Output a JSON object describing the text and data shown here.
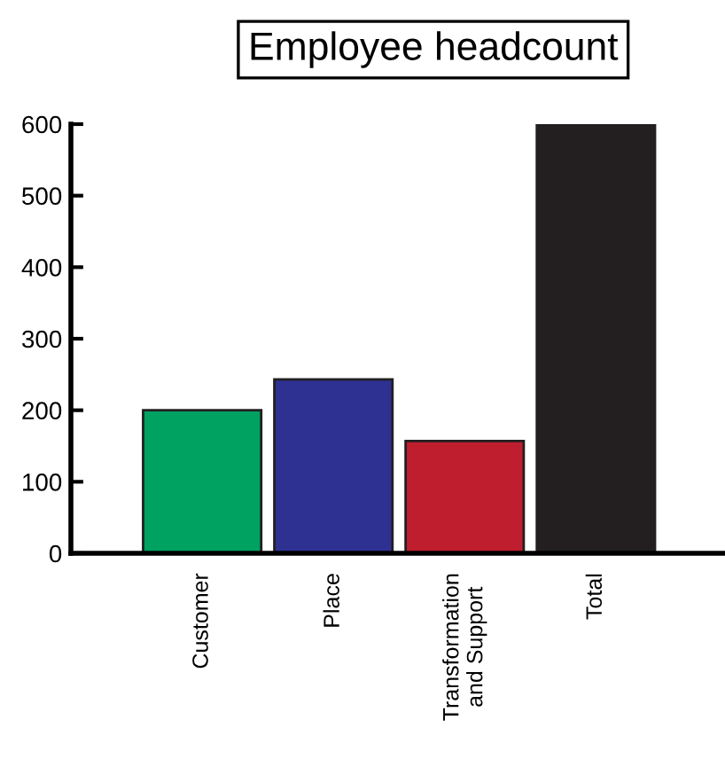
{
  "chart_data": {
    "type": "bar",
    "title": "Employee headcount",
    "categories": [
      "Customer",
      "Place",
      "Transformation\nand Support",
      "Total"
    ],
    "values": [
      200,
      243,
      157,
      600
    ],
    "colors": [
      "#00a262",
      "#2e3192",
      "#be1e2d",
      "#231f20"
    ],
    "ylim": [
      0,
      600
    ],
    "yticks": [
      0,
      100,
      200,
      300,
      400,
      500,
      600
    ],
    "grid": false,
    "legend": false
  }
}
